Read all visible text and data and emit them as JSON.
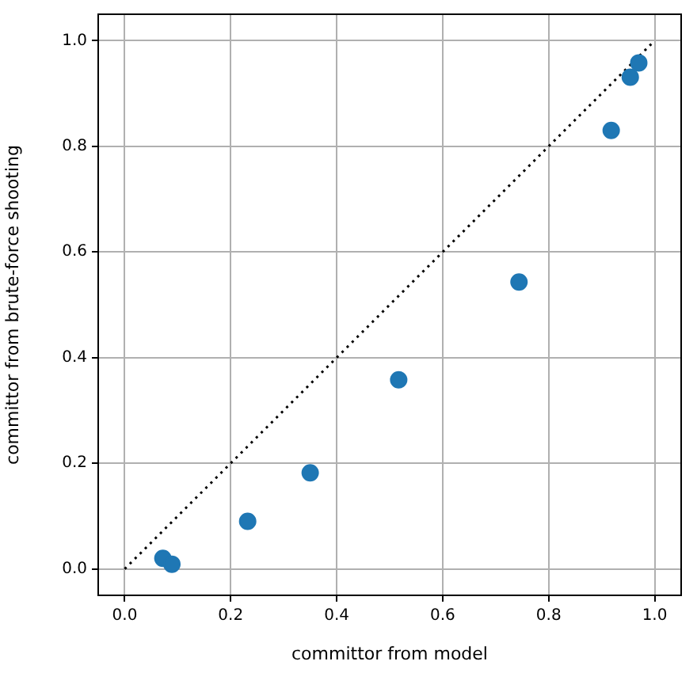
{
  "chart_data": {
    "type": "scatter",
    "xlabel": "committor from model",
    "ylabel": "committor from brute-force shooting",
    "series": [
      {
        "color": "#1f77b4",
        "marker": "circle",
        "x": [
          0.072,
          0.089,
          0.232,
          0.35,
          0.517,
          0.744,
          0.918,
          0.954,
          0.97
        ],
        "values": [
          0.02,
          0.009,
          0.09,
          0.182,
          0.358,
          0.543,
          0.83,
          0.931,
          0.958
        ]
      },
      {
        "type": "line",
        "color": "#000000",
        "marker": "none",
        "line_style": "dotted",
        "x": [
          0,
          1
        ],
        "values": [
          0,
          1
        ]
      }
    ],
    "xlim": [
      -0.05,
      1.05
    ],
    "ylim": [
      -0.05,
      1.05
    ],
    "xticks": [
      {
        "value": 0,
        "label": "0.0"
      },
      {
        "value": 0.2,
        "label": "0.2"
      },
      {
        "value": 0.4,
        "label": "0.4"
      },
      {
        "value": 0.6,
        "label": "0.6"
      },
      {
        "value": 0.8,
        "label": "0.8"
      },
      {
        "value": 1,
        "label": "1.0"
      }
    ],
    "yticks": [
      {
        "value": 0,
        "label": "0.0"
      },
      {
        "value": 0.2,
        "label": "0.2"
      },
      {
        "value": 0.4,
        "label": "0.4"
      },
      {
        "value": 0.6,
        "label": "0.6"
      },
      {
        "value": 0.8,
        "label": "0.8"
      },
      {
        "value": 1,
        "label": "1.0"
      }
    ],
    "grid": true,
    "legend": false
  }
}
